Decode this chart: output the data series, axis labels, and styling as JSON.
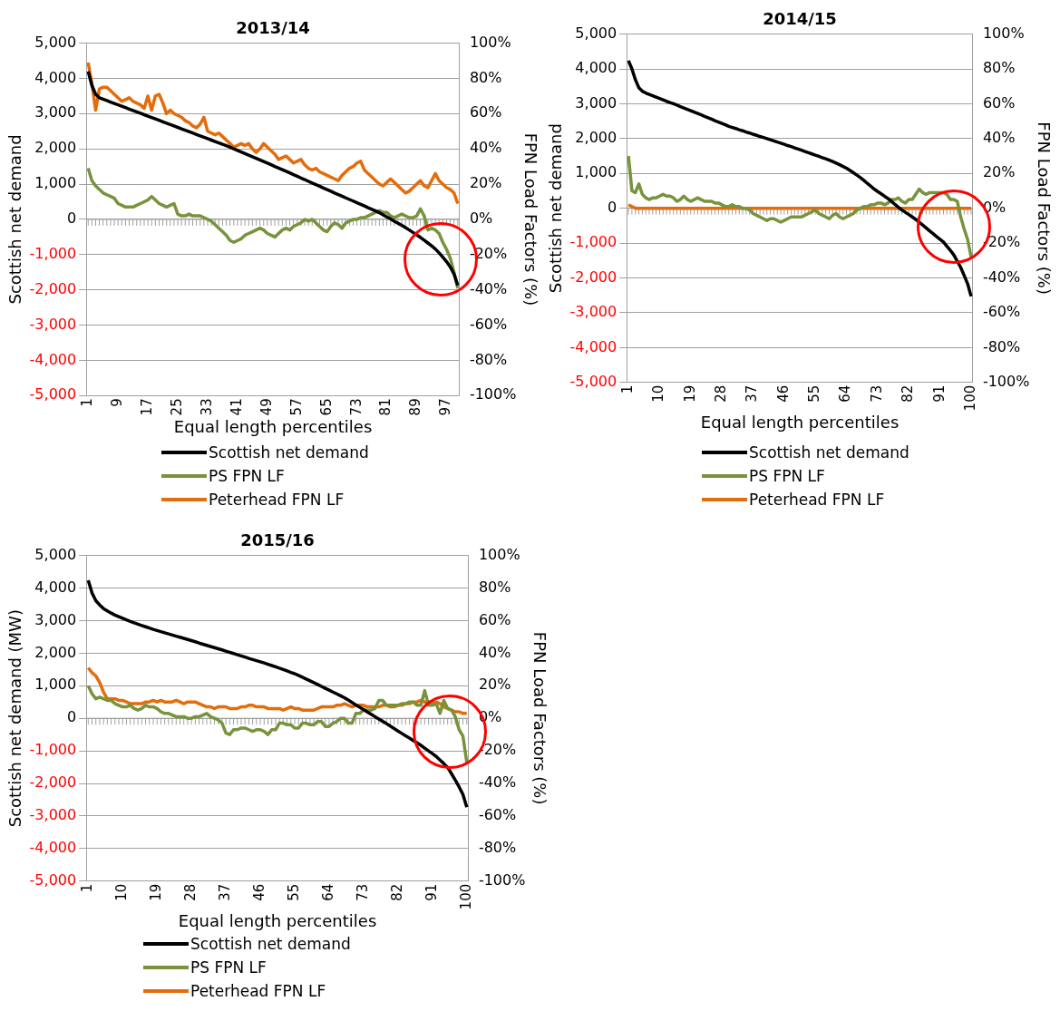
{
  "chart_data": [
    {
      "type": "line",
      "title": "2013/14",
      "xlabel": "Equal length percentiles",
      "ylabel": "Scottish net demand",
      "y2label": "FPN Load Factors (%)",
      "categories": [
        "1",
        null,
        null,
        null,
        null,
        null,
        null,
        null,
        "9",
        null,
        null,
        null,
        null,
        null,
        null,
        null,
        "17",
        null,
        null,
        null,
        null,
        null,
        null,
        null,
        "25",
        null,
        null,
        null,
        null,
        null,
        null,
        null,
        "33",
        null,
        null,
        null,
        null,
        null,
        null,
        null,
        "41",
        null,
        null,
        null,
        null,
        null,
        null,
        null,
        "49",
        null,
        null,
        null,
        null,
        null,
        null,
        null,
        "57",
        null,
        null,
        null,
        null,
        null,
        null,
        null,
        "65",
        null,
        null,
        null,
        null,
        null,
        null,
        null,
        "73",
        null,
        null,
        null,
        null,
        null,
        null,
        null,
        "81",
        null,
        null,
        null,
        null,
        null,
        null,
        null,
        "89",
        null,
        null,
        null,
        null,
        null,
        null,
        null,
        "97",
        null,
        null,
        null
      ],
      "series": [
        {
          "name": "Scottish net demand",
          "color": "#000000",
          "values": [
            4200,
            3800,
            3550,
            3450,
            3410,
            3370,
            3330,
            3290,
            3250,
            3210,
            3170,
            3130,
            3090,
            3050,
            3010,
            2970,
            2930,
            2890,
            2850,
            2810,
            2770,
            2730,
            2690,
            2650,
            2610,
            2570,
            2530,
            2490,
            2450,
            2410,
            2370,
            2330,
            2290,
            2250,
            2210,
            2170,
            2130,
            2090,
            2050,
            2000,
            1955,
            1910,
            1865,
            1820,
            1775,
            1730,
            1685,
            1640,
            1595,
            1550,
            1500,
            1455,
            1410,
            1365,
            1320,
            1270,
            1225,
            1175,
            1130,
            1080,
            1030,
            985,
            940,
            890,
            845,
            800,
            750,
            705,
            660,
            610,
            565,
            520,
            470,
            425,
            380,
            330,
            285,
            240,
            190,
            130,
            70,
            10,
            -50,
            -110,
            -170,
            -235,
            -300,
            -370,
            -440,
            -510,
            -590,
            -670,
            -750,
            -840,
            -950,
            -1070,
            -1200,
            -1350,
            -1550,
            -1870
          ]
        },
        {
          "name": "PS FPN LF",
          "color": "#77933c",
          "axis": "y2",
          "values": [
            29,
            22,
            19,
            17,
            15,
            14,
            13,
            12,
            9,
            8,
            7,
            7,
            7,
            8,
            9,
            10,
            11,
            13,
            11,
            9,
            8,
            7,
            8,
            9,
            3,
            2,
            2,
            3,
            2,
            2,
            2,
            1,
            0,
            -1,
            -3,
            -5,
            -7,
            -9,
            -12,
            -13,
            -12,
            -11,
            -9,
            -8,
            -7,
            -6,
            -5,
            -6,
            -8,
            -9,
            -10,
            -8,
            -6,
            -5,
            -6,
            -4,
            -3,
            -2,
            0,
            -1,
            0,
            -2,
            -4,
            -6,
            -7,
            -4,
            -2,
            -3,
            -5,
            -2,
            -1,
            0,
            0,
            1,
            1,
            2,
            3,
            4,
            5,
            4,
            4,
            2,
            1,
            2,
            3,
            2,
            1,
            1,
            2,
            6,
            2,
            -6,
            -5,
            -6,
            -8,
            -13,
            -17,
            -22,
            -30,
            -39
          ]
        },
        {
          "name": "Peterhead FPN LF",
          "color": "#e46c0a",
          "axis": "y2",
          "values": [
            89,
            77,
            62,
            74,
            75,
            75,
            73,
            71,
            69,
            67,
            68,
            69,
            67,
            66,
            65,
            63,
            70,
            62,
            70,
            71,
            66,
            60,
            62,
            60,
            59,
            58,
            56,
            55,
            53,
            52,
            54,
            58,
            50,
            49,
            48,
            49,
            47,
            45,
            43,
            41,
            42,
            43,
            42,
            43,
            40,
            38,
            40,
            43,
            41,
            39,
            37,
            34,
            35,
            36,
            34,
            32,
            33,
            34,
            31,
            29,
            28,
            29,
            27,
            26,
            25,
            24,
            23,
            22,
            25,
            27,
            29,
            30,
            32,
            33,
            28,
            26,
            24,
            22,
            20,
            19,
            21,
            23,
            21,
            19,
            17,
            15,
            16,
            18,
            20,
            22,
            19,
            18,
            22,
            26,
            22,
            20,
            18,
            17,
            15,
            9
          ]
        }
      ],
      "ylim": [
        -5000,
        5000
      ],
      "yticks": [
        {
          "value": -5000,
          "label": "-5,000"
        },
        {
          "value": -4000,
          "label": "-4,000"
        },
        {
          "value": -3000,
          "label": "-3,000"
        },
        {
          "value": -2000,
          "label": "-2,000"
        },
        {
          "value": -1000,
          "label": "-1,000"
        },
        {
          "value": 0,
          "label": "0"
        },
        {
          "value": 1000,
          "label": "1,000"
        },
        {
          "value": 2000,
          "label": "2,000"
        },
        {
          "value": 3000,
          "label": "3,000"
        },
        {
          "value": 4000,
          "label": "4,000"
        },
        {
          "value": 5000,
          "label": "5,000"
        }
      ],
      "y2lim": [
        -100,
        100
      ],
      "y2ticks": [
        {
          "value": -100,
          "label": "-100%"
        },
        {
          "value": -80,
          "label": "-80%"
        },
        {
          "value": -60,
          "label": "-60%"
        },
        {
          "value": -40,
          "label": "-40%"
        },
        {
          "value": -20,
          "label": "-20%"
        },
        {
          "value": 0,
          "label": "0%"
        },
        {
          "value": 20,
          "label": "20%"
        },
        {
          "value": 40,
          "label": "40%"
        },
        {
          "value": 60,
          "label": "60%"
        },
        {
          "value": 80,
          "label": "80%"
        },
        {
          "value": 100,
          "label": "100%"
        }
      ],
      "grid": "y",
      "legend": "bottom"
    },
    {
      "type": "line",
      "title": "2014/15",
      "xlabel": "Equal length percentiles",
      "ylabel": "Scottish net demand",
      "y2label": "FPN Load Factors (%)",
      "categories": [
        "1",
        null,
        null,
        null,
        null,
        null,
        null,
        null,
        null,
        "10",
        null,
        null,
        null,
        null,
        null,
        null,
        null,
        null,
        "19",
        null,
        null,
        null,
        null,
        null,
        null,
        null,
        null,
        "28",
        null,
        null,
        null,
        null,
        null,
        null,
        null,
        null,
        "37",
        null,
        null,
        null,
        null,
        null,
        null,
        null,
        null,
        "46",
        null,
        null,
        null,
        null,
        null,
        null,
        null,
        null,
        "55",
        null,
        null,
        null,
        null,
        null,
        null,
        null,
        null,
        "64",
        null,
        null,
        null,
        null,
        null,
        null,
        null,
        null,
        "73",
        null,
        null,
        null,
        null,
        null,
        null,
        null,
        null,
        "82",
        null,
        null,
        null,
        null,
        null,
        null,
        null,
        null,
        "91",
        null,
        null,
        null,
        null,
        null,
        null,
        null,
        null,
        "100"
      ],
      "series": [
        {
          "name": "Scottish net demand",
          "color": "#000000",
          "values": [
            4240,
            4000,
            3690,
            3460,
            3360,
            3310,
            3270,
            3230,
            3190,
            3150,
            3110,
            3070,
            3035,
            3000,
            2960,
            2920,
            2880,
            2840,
            2800,
            2760,
            2720,
            2680,
            2640,
            2600,
            2560,
            2515,
            2475,
            2435,
            2395,
            2350,
            2320,
            2290,
            2255,
            2225,
            2190,
            2160,
            2125,
            2095,
            2060,
            2030,
            2000,
            1965,
            1935,
            1900,
            1870,
            1835,
            1800,
            1770,
            1735,
            1700,
            1665,
            1630,
            1595,
            1560,
            1525,
            1490,
            1455,
            1420,
            1380,
            1340,
            1295,
            1250,
            1200,
            1150,
            1085,
            1020,
            950,
            880,
            800,
            715,
            635,
            550,
            480,
            415,
            345,
            280,
            195,
            110,
            30,
            -50,
            -115,
            -180,
            -250,
            -320,
            -400,
            -480,
            -565,
            -650,
            -730,
            -810,
            -890,
            -970,
            -1090,
            -1210,
            -1340,
            -1520,
            -1700,
            -1930,
            -2170,
            -2530
          ]
        },
        {
          "name": "PS FPN LF",
          "color": "#77933c",
          "axis": "y2",
          "values": [
            30,
            10,
            9,
            14,
            8,
            6,
            5,
            6,
            6,
            7,
            8,
            7,
            7,
            6,
            4,
            5,
            7,
            5,
            4,
            5,
            6,
            5,
            4,
            4,
            4,
            3,
            3,
            2,
            1,
            1,
            2,
            1,
            1,
            0,
            0,
            -1,
            -3,
            -4,
            -5,
            -6,
            -7,
            -6,
            -6,
            -7,
            -8,
            -7,
            -6,
            -5,
            -5,
            -5,
            -5,
            -4,
            -3,
            -2,
            -1,
            -3,
            -4,
            -5,
            -6,
            -4,
            -3,
            -5,
            -6,
            -5,
            -4,
            -3,
            -1,
            0,
            1,
            1,
            2,
            2,
            3,
            3,
            2,
            3,
            5,
            5,
            6,
            4,
            3,
            5,
            5,
            8,
            11,
            9,
            8,
            9,
            9,
            9,
            9,
            9,
            8,
            5,
            5,
            4,
            -5,
            -12,
            -18,
            -28
          ]
        },
        {
          "name": "Peterhead FPN LF",
          "color": "#e46c0a",
          "axis": "y2",
          "values": [
            2,
            1,
            0,
            0,
            0,
            0,
            0,
            0,
            0,
            0,
            0,
            0,
            0,
            0,
            0,
            0,
            0,
            0,
            0,
            0,
            0,
            0,
            0,
            0,
            0,
            0,
            0,
            0,
            0,
            0,
            0,
            0,
            0,
            0,
            0,
            0,
            0,
            0,
            0,
            0,
            0,
            0,
            0,
            0,
            0,
            0,
            0,
            0,
            0,
            0,
            0,
            0,
            0,
            0,
            0,
            0,
            0,
            0,
            0,
            0,
            0,
            0,
            0,
            0,
            0,
            0,
            0,
            0,
            0,
            0,
            0,
            0,
            0,
            0,
            0,
            0,
            0,
            0,
            0,
            0,
            0,
            0,
            0,
            0,
            0,
            0,
            0,
            0,
            0,
            0,
            0,
            0,
            0,
            0,
            0,
            0,
            0,
            0,
            0,
            0
          ]
        }
      ],
      "ylim": [
        -5000,
        5000
      ],
      "yticks": [
        {
          "value": -5000,
          "label": "-5,000"
        },
        {
          "value": -4000,
          "label": "-4,000"
        },
        {
          "value": -3000,
          "label": "-3,000"
        },
        {
          "value": -2000,
          "label": "-2,000"
        },
        {
          "value": -1000,
          "label": "-1,000"
        },
        {
          "value": 0,
          "label": "0"
        },
        {
          "value": 1000,
          "label": "1,000"
        },
        {
          "value": 2000,
          "label": "2,000"
        },
        {
          "value": 3000,
          "label": "3,000"
        },
        {
          "value": 4000,
          "label": "4,000"
        },
        {
          "value": 5000,
          "label": "5,000"
        }
      ],
      "y2lim": [
        -100,
        100
      ],
      "y2ticks": [
        {
          "value": -100,
          "label": "-100%"
        },
        {
          "value": -80,
          "label": "-80%"
        },
        {
          "value": -60,
          "label": "-60%"
        },
        {
          "value": -40,
          "label": "-40%"
        },
        {
          "value": -20,
          "label": "-20%"
        },
        {
          "value": 0,
          "label": "0%"
        },
        {
          "value": 20,
          "label": "20%"
        },
        {
          "value": 40,
          "label": "40%"
        },
        {
          "value": 60,
          "label": "60%"
        },
        {
          "value": 80,
          "label": "80%"
        },
        {
          "value": 100,
          "label": "100%"
        }
      ],
      "grid": "y",
      "legend": "bottom"
    },
    {
      "type": "line",
      "title": "2015/16",
      "xlabel": "Equal length percentiles",
      "ylabel": "Scottish net demand (MW)",
      "y2label": "FPN Load Factors (%)",
      "categories": [
        "1",
        null,
        null,
        null,
        null,
        null,
        null,
        null,
        null,
        "10",
        null,
        null,
        null,
        null,
        null,
        null,
        null,
        null,
        "19",
        null,
        null,
        null,
        null,
        null,
        null,
        null,
        null,
        "28",
        null,
        null,
        null,
        null,
        null,
        null,
        null,
        null,
        "37",
        null,
        null,
        null,
        null,
        null,
        null,
        null,
        null,
        "46",
        null,
        null,
        null,
        null,
        null,
        null,
        null,
        null,
        "55",
        null,
        null,
        null,
        null,
        null,
        null,
        null,
        null,
        "64",
        null,
        null,
        null,
        null,
        null,
        null,
        null,
        null,
        "73",
        null,
        null,
        null,
        null,
        null,
        null,
        null,
        null,
        "82",
        null,
        null,
        null,
        null,
        null,
        null,
        null,
        null,
        "91",
        null,
        null,
        null,
        null,
        null,
        null,
        null,
        null,
        "100"
      ],
      "series": [
        {
          "name": "Scottish net demand",
          "color": "#000000",
          "values": [
            4240,
            3850,
            3610,
            3480,
            3370,
            3300,
            3230,
            3170,
            3120,
            3070,
            3020,
            2975,
            2930,
            2890,
            2850,
            2810,
            2770,
            2730,
            2695,
            2660,
            2625,
            2590,
            2555,
            2520,
            2490,
            2455,
            2420,
            2385,
            2350,
            2310,
            2275,
            2240,
            2205,
            2170,
            2135,
            2100,
            2060,
            2025,
            1990,
            1950,
            1915,
            1880,
            1840,
            1805,
            1770,
            1735,
            1700,
            1660,
            1620,
            1580,
            1540,
            1500,
            1455,
            1410,
            1370,
            1315,
            1260,
            1205,
            1150,
            1095,
            1040,
            980,
            920,
            865,
            805,
            750,
            690,
            630,
            560,
            485,
            410,
            340,
            270,
            195,
            125,
            50,
            -20,
            -95,
            -165,
            -240,
            -315,
            -390,
            -465,
            -540,
            -610,
            -685,
            -755,
            -830,
            -915,
            -1000,
            -1085,
            -1170,
            -1280,
            -1390,
            -1510,
            -1700,
            -1900,
            -2110,
            -2340,
            -2730
          ]
        },
        {
          "name": "PS FPN LF",
          "color": "#77933c",
          "axis": "y2",
          "values": [
            20,
            15,
            12,
            13,
            12,
            11,
            11,
            9,
            8,
            7,
            7,
            8,
            6,
            5,
            6,
            8,
            7,
            7,
            6,
            4,
            3,
            3,
            2,
            1,
            1,
            1,
            0,
            0,
            1,
            1,
            2,
            3,
            1,
            0,
            -1,
            -3,
            -9,
            -10,
            -7,
            -7,
            -6,
            -6,
            -7,
            -8,
            -7,
            -7,
            -8,
            -10,
            -7,
            -7,
            -3,
            -3,
            -4,
            -4,
            -6,
            -6,
            -3,
            -3,
            -4,
            -4,
            -2,
            -2,
            -5,
            -5,
            -3,
            -2,
            0,
            0,
            -3,
            -3,
            3,
            3,
            5,
            5,
            5,
            6,
            11,
            11,
            8,
            8,
            8,
            8,
            9,
            9,
            10,
            10,
            8,
            8,
            17,
            8,
            8,
            9,
            3,
            11,
            6,
            5,
            1,
            -7,
            -11,
            -27
          ]
        },
        {
          "name": "Peterhead FPN LF",
          "color": "#e46c0a",
          "axis": "y2",
          "values": [
            31,
            28,
            26,
            22,
            16,
            12,
            12,
            12,
            11,
            11,
            10,
            9,
            9,
            9,
            9,
            10,
            10,
            11,
            10,
            11,
            10,
            10,
            10,
            11,
            10,
            9,
            10,
            10,
            10,
            9,
            8,
            7,
            7,
            6,
            7,
            7,
            7,
            6,
            6,
            6,
            7,
            7,
            8,
            8,
            7,
            7,
            7,
            6,
            6,
            6,
            6,
            5,
            6,
            7,
            6,
            6,
            5,
            5,
            5,
            5,
            6,
            7,
            7,
            7,
            7,
            8,
            8,
            9,
            8,
            7,
            8,
            8,
            8,
            7,
            7,
            7,
            7,
            8,
            8,
            7,
            7,
            8,
            8,
            9,
            9,
            10,
            10,
            11,
            10,
            10,
            10,
            10,
            9,
            7,
            6,
            5,
            4,
            4,
            3,
            3
          ]
        }
      ],
      "ylim": [
        -5000,
        5000
      ],
      "yticks": [
        {
          "value": -5000,
          "label": "-5,000"
        },
        {
          "value": -4000,
          "label": "-4,000"
        },
        {
          "value": -3000,
          "label": "-3,000"
        },
        {
          "value": -2000,
          "label": "-2,000"
        },
        {
          "value": -1000,
          "label": "-1,000"
        },
        {
          "value": 0,
          "label": "0"
        },
        {
          "value": 1000,
          "label": "1,000"
        },
        {
          "value": 2000,
          "label": "2,000"
        },
        {
          "value": 3000,
          "label": "3,000"
        },
        {
          "value": 4000,
          "label": "4,000"
        },
        {
          "value": 5000,
          "label": "5,000"
        }
      ],
      "y2lim": [
        -100,
        100
      ],
      "y2ticks": [
        {
          "value": -100,
          "label": "-100%"
        },
        {
          "value": -80,
          "label": "-80%"
        },
        {
          "value": -60,
          "label": "-60%"
        },
        {
          "value": -40,
          "label": "-40%"
        },
        {
          "value": -20,
          "label": "-20%"
        },
        {
          "value": 0,
          "label": "0%"
        },
        {
          "value": 20,
          "label": "20%"
        },
        {
          "value": 40,
          "label": "40%"
        },
        {
          "value": 60,
          "label": "60%"
        },
        {
          "value": 80,
          "label": "80%"
        },
        {
          "value": 100,
          "label": "100%"
        }
      ],
      "grid": "y",
      "legend": "bottom"
    }
  ]
}
